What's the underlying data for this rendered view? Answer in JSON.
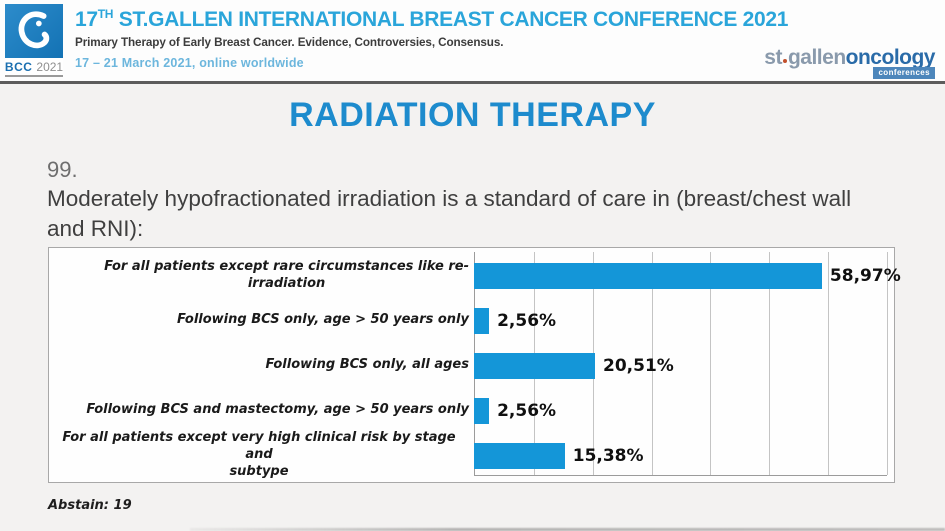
{
  "header": {
    "bcc_logo": {
      "abbr": "BCC",
      "year": "2021"
    },
    "title": {
      "num": "17",
      "sup": "TH",
      "rest": " ST.GALLEN INTERNATIONAL BREAST CANCER CONFERENCE 2021"
    },
    "subtitle": "Primary Therapy of Early Breast Cancer. Evidence, Controversies, Consensus.",
    "dates": "17 – 21 March 2021, online worldwide",
    "brand": {
      "st": "st",
      "gallen": "gallen",
      "oncology": "oncology",
      "badge": "conferences"
    }
  },
  "slide": {
    "section_title": "RADIATION THERAPY",
    "question_number": "99.",
    "question_text": "Moderately hypofractionated irradiation is a standard of care in (breast/chest wall and RNI):",
    "abstain_label": "Abstain: 19"
  },
  "chart_data": {
    "type": "bar",
    "orientation": "horizontal",
    "title": "",
    "xlabel": "",
    "ylabel": "",
    "categories": [
      "For all patients except rare circumstances like re-irradiation",
      "Following BCS only, age > 50 years only",
      "Following BCS only, all ages",
      "Following BCS and mastectomy, age > 50 years only",
      "For all patients except very high clinical risk by stage and subtype"
    ],
    "label_lines": [
      [
        "For all patients except rare circumstances like re-",
        "irradiation"
      ],
      [
        "Following BCS only, age > 50 years only"
      ],
      [
        "Following BCS only, all ages"
      ],
      [
        "Following BCS and mastectomy, age > 50 years only"
      ],
      [
        "For all patients except very high clinical risk by stage and",
        "subtype"
      ]
    ],
    "values": [
      58.97,
      2.56,
      20.51,
      2.56,
      15.38
    ],
    "value_labels": [
      "58,97%",
      "2,56%",
      "20,51%",
      "2,56%",
      "15,38%"
    ],
    "xlim": [
      0,
      70
    ],
    "gridline_step": 10,
    "grid": true,
    "legend": false,
    "bar_color": "#1496d8",
    "abstain": 19
  },
  "colors": {
    "section_title_blue": "#1d8bcd",
    "header_title_blue": "#2aa5da",
    "dates_blue": "#6cb6dd",
    "bar_blue": "#1496d8",
    "brand_gray": "#8a9aac",
    "brand_blue": "#2a6ba8"
  }
}
